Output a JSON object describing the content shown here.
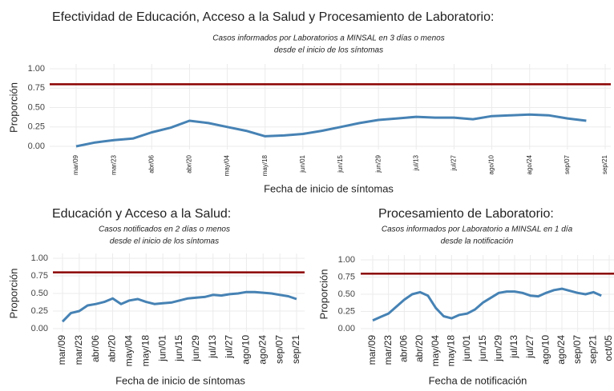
{
  "chart_data": [
    {
      "type": "line",
      "title": "Efectividad de Educación, Acceso a la Salud y Procesamiento de Laboratorio:",
      "subtitle": [
        "Casos informados por Laboratorios a MINSAL en 3 días o menos",
        "desde el inicio de los síntomas"
      ],
      "xlabel": "Fecha de inicio de síntomas",
      "ylabel": "Proporción",
      "x": [
        "mar/09",
        "mar/16",
        "mar/23",
        "mar/30",
        "abr/06",
        "abr/13",
        "abr/20",
        "abr/27",
        "may/04",
        "may/11",
        "may/18",
        "may/25",
        "jun/01",
        "jun/08",
        "jun/15",
        "jun/22",
        "jun/29",
        "jul/06",
        "jul/13",
        "jul/20",
        "jul/27",
        "ago/03",
        "ago/10",
        "ago/17",
        "ago/24",
        "ago/31",
        "sep/07",
        "sep/14",
        "sep/21"
      ],
      "values": [
        0.0,
        0.05,
        0.08,
        0.1,
        0.18,
        0.24,
        0.33,
        0.3,
        0.25,
        0.2,
        0.13,
        0.14,
        0.16,
        0.2,
        0.25,
        0.3,
        0.34,
        0.36,
        0.38,
        0.37,
        0.37,
        0.35,
        0.39,
        0.4,
        0.41,
        0.4,
        0.36,
        0.33,
        null
      ],
      "xticks": [
        "mar/09",
        "mar/23",
        "abr/06",
        "abr/20",
        "may/04",
        "may/18",
        "jun/01",
        "jun/15",
        "jun/29",
        "jul/13",
        "jul/27",
        "ago/10",
        "ago/24",
        "sep/07",
        "sep/21"
      ],
      "ylim": [
        0,
        1
      ],
      "yticks": [
        {
          "value": 0,
          "label": "0.00"
        },
        {
          "value": 0.25,
          "label": "0.25"
        },
        {
          "value": 0.5,
          "label": "0.50"
        },
        {
          "value": 0.75,
          "label": "0.75"
        },
        {
          "value": 1,
          "label": "1.00"
        }
      ],
      "reference_line": {
        "value": 0.8,
        "color": "#8b0000"
      },
      "color": "#4682b4",
      "grid": true
    },
    {
      "type": "line",
      "title": "Educación y Acceso a la Salud:",
      "subtitle": [
        "Casos notificados en 2 días o menos",
        "desde el inicio de los síntomas"
      ],
      "xlabel": "Fecha de inicio de síntomas",
      "ylabel": "Proporción",
      "x": [
        "mar/09",
        "mar/16",
        "mar/23",
        "mar/30",
        "abr/06",
        "abr/13",
        "abr/20",
        "abr/27",
        "may/04",
        "may/11",
        "may/18",
        "may/25",
        "jun/01",
        "jun/08",
        "jun/15",
        "jun/22",
        "jun/29",
        "jul/06",
        "jul/13",
        "jul/20",
        "jul/27",
        "ago/03",
        "ago/10",
        "ago/17",
        "ago/24",
        "ago/31",
        "sep/07",
        "sep/14",
        "sep/21"
      ],
      "values": [
        0.1,
        0.22,
        0.25,
        0.33,
        0.35,
        0.38,
        0.43,
        0.35,
        0.4,
        0.42,
        0.38,
        0.35,
        0.36,
        0.37,
        0.4,
        0.43,
        0.44,
        0.45,
        0.48,
        0.47,
        0.49,
        0.5,
        0.52,
        0.52,
        0.51,
        0.5,
        0.48,
        0.46,
        0.42
      ],
      "xticks": [
        "mar/09",
        "mar/23",
        "abr/06",
        "abr/20",
        "may/04",
        "may/18",
        "jun/01",
        "jun/15",
        "jun/29",
        "jul/13",
        "jul/27",
        "ago/10",
        "ago/24",
        "sep/07",
        "sep/21"
      ],
      "ylim": [
        0,
        1
      ],
      "yticks": [
        {
          "value": 0,
          "label": "0.00"
        },
        {
          "value": 0.25,
          "label": "0.25"
        },
        {
          "value": 0.5,
          "label": "0.50"
        },
        {
          "value": 0.75,
          "label": "0.75"
        },
        {
          "value": 1,
          "label": "1.00"
        }
      ],
      "reference_line": {
        "value": 0.8,
        "color": "#8b0000"
      },
      "color": "#4682b4",
      "grid": true
    },
    {
      "type": "line",
      "title": "Procesamiento de Laboratorio:",
      "subtitle": [
        "Casos informados por Laboratorio a MINSAL en 1 día",
        "desde la notificación"
      ],
      "xlabel": "Fecha de notificación",
      "ylabel": "Proporción",
      "x": [
        "mar/09",
        "mar/16",
        "mar/23",
        "mar/30",
        "abr/06",
        "abr/13",
        "abr/20",
        "abr/27",
        "may/04",
        "may/11",
        "may/18",
        "may/25",
        "jun/01",
        "jun/08",
        "jun/15",
        "jun/22",
        "jun/29",
        "jul/06",
        "jul/13",
        "jul/20",
        "jul/27",
        "ago/03",
        "ago/10",
        "ago/17",
        "ago/24",
        "ago/31",
        "sep/07",
        "sep/14",
        "sep/21",
        "sep/28",
        "oct/05"
      ],
      "values": [
        0.12,
        0.17,
        0.22,
        0.32,
        0.42,
        0.5,
        0.53,
        0.48,
        0.3,
        0.18,
        0.15,
        0.2,
        0.22,
        0.28,
        0.38,
        0.45,
        0.52,
        0.54,
        0.54,
        0.52,
        0.48,
        0.47,
        0.52,
        0.56,
        0.58,
        0.55,
        0.52,
        0.5,
        0.53,
        0.48,
        null
      ],
      "xticks": [
        "mar/09",
        "mar/23",
        "abr/06",
        "abr/20",
        "may/04",
        "may/18",
        "jun/01",
        "jun/15",
        "jun/29",
        "jul/13",
        "jul/27",
        "ago/10",
        "ago/24",
        "sep/07",
        "sep/21",
        "oct/05"
      ],
      "ylim": [
        0,
        1
      ],
      "yticks": [
        {
          "value": 0,
          "label": "0.00"
        },
        {
          "value": 0.25,
          "label": "0.25"
        },
        {
          "value": 0.5,
          "label": "0.50"
        },
        {
          "value": 0.75,
          "label": "0.75"
        },
        {
          "value": 1,
          "label": "1.00"
        }
      ],
      "reference_line": {
        "value": 0.8,
        "color": "#8b0000"
      },
      "color": "#4682b4",
      "grid": true
    }
  ]
}
